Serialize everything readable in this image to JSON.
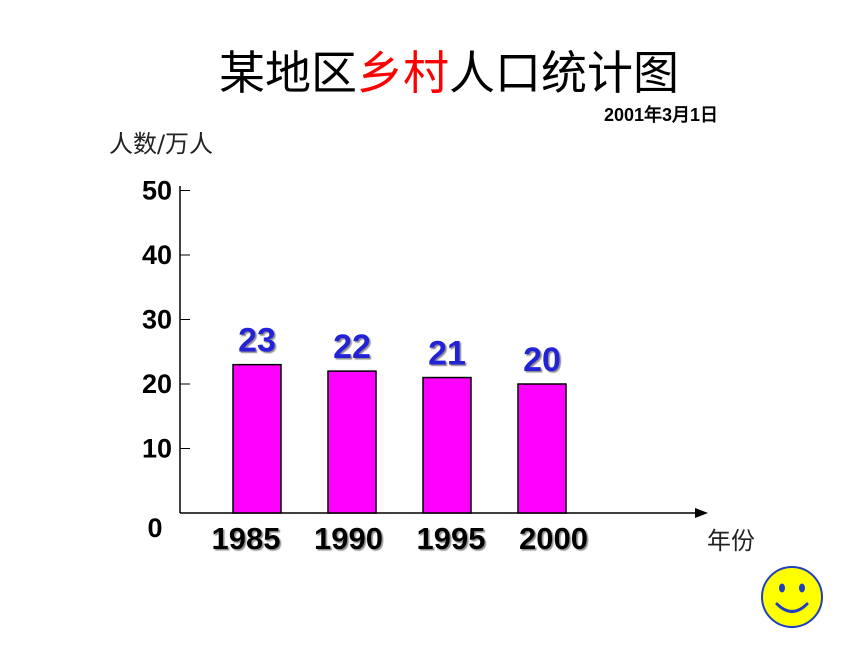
{
  "chart_data": {
    "type": "bar",
    "title_segments": [
      {
        "text": "某地区",
        "color": "#000000"
      },
      {
        "text": "乡村",
        "color": "#ff0000"
      },
      {
        "text": "人口统计图",
        "color": "#000000"
      }
    ],
    "subtitle": "2001年3月1日",
    "ylabel": "人数/万人",
    "xlabel": "年份",
    "categories": [
      "1985",
      "1990",
      "1995",
      "2000"
    ],
    "values": [
      23,
      22,
      21,
      20
    ],
    "ylim": [
      0,
      50
    ],
    "yticks": [
      0,
      10,
      20,
      30,
      40,
      50
    ],
    "data_labels": true,
    "grid": false,
    "legend": "none",
    "colors": {
      "bar": "#ff00ff",
      "bar_outline": "#000000",
      "data_label": "#2424d6",
      "axis": "#000000"
    }
  },
  "decoration": {
    "icon": "smiley-face-icon",
    "face_color": "#ffff00",
    "feature_color": "#1f3fbf"
  }
}
